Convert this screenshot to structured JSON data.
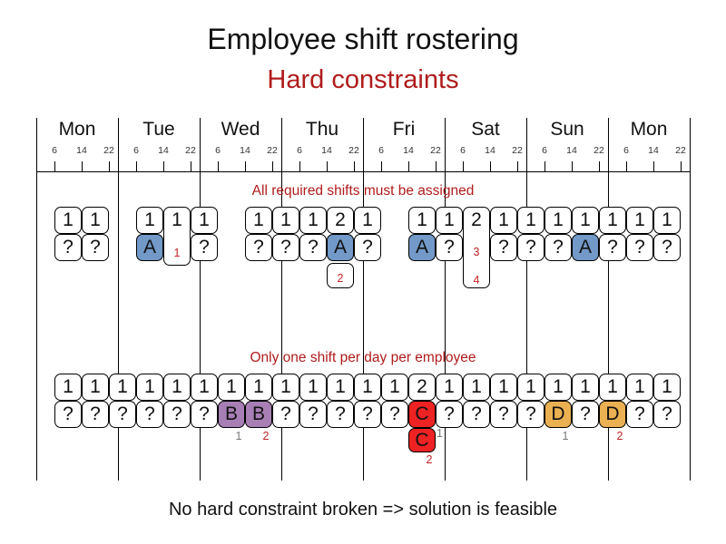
{
  "title": "Employee shift rostering",
  "subtitle": "Hard constraints",
  "footer": "No hard constraint broken => solution is feasible",
  "colors": {
    "accent_red": "#b01c1c",
    "note_red": "#c22222",
    "note_gray": "#777777",
    "line": "#000000",
    "employees": {
      "A": "#7299c8",
      "B": "#a87fb5",
      "C": "#ee2222",
      "D": "#eab052"
    }
  },
  "timeline": {
    "days": [
      "Mon",
      "Tue",
      "Wed",
      "Thu",
      "Fri",
      "Sat",
      "Sun",
      "Mon"
    ],
    "hour_ticks": [
      "6",
      "14",
      "22"
    ]
  },
  "sections": [
    {
      "label": "All required shifts must be assigned",
      "columns": [
        {
          "day": 0,
          "shift": 0,
          "required": "1",
          "assigned": "?"
        },
        {
          "day": 0,
          "shift": 1,
          "required": "1",
          "assigned": "?"
        },
        {
          "day": 1,
          "shift": 0,
          "required": "1",
          "assigned": "A"
        },
        {
          "day": 1,
          "shift": 1,
          "required": "1",
          "variant": "tall",
          "tall_notes": [
            {
              "text": "1",
              "tone": "red"
            }
          ]
        },
        {
          "day": 1,
          "shift": 2,
          "required": "1",
          "assigned": "?"
        },
        {
          "day": 2,
          "shift": 1,
          "required": "1",
          "assigned": "?"
        },
        {
          "day": 2,
          "shift": 2,
          "required": "1",
          "assigned": "?"
        },
        {
          "day": 3,
          "shift": 0,
          "required": "1",
          "assigned": "?"
        },
        {
          "day": 3,
          "shift": 1,
          "required": "2",
          "assigned": "A",
          "below_box_note": {
            "text": "2",
            "tone": "red"
          }
        },
        {
          "day": 3,
          "shift": 2,
          "required": "1",
          "assigned": "?"
        },
        {
          "day": 4,
          "shift": 1,
          "required": "1",
          "assigned": "A"
        },
        {
          "day": 4,
          "shift": 2,
          "required": "1",
          "assigned": "?"
        },
        {
          "day": 5,
          "shift": 0,
          "required": "2",
          "variant": "xtall",
          "tall_notes": [
            {
              "text": "3",
              "tone": "red"
            },
            {
              "text": "4",
              "tone": "red"
            }
          ]
        },
        {
          "day": 5,
          "shift": 1,
          "required": "1",
          "assigned": "?"
        },
        {
          "day": 5,
          "shift": 2,
          "required": "1",
          "assigned": "?"
        },
        {
          "day": 6,
          "shift": 0,
          "required": "1",
          "assigned": "?"
        },
        {
          "day": 6,
          "shift": 1,
          "required": "1",
          "assigned": "A"
        },
        {
          "day": 6,
          "shift": 2,
          "required": "1",
          "assigned": "?"
        },
        {
          "day": 7,
          "shift": 0,
          "required": "1",
          "assigned": "?"
        },
        {
          "day": 7,
          "shift": 1,
          "required": "1",
          "assigned": "?"
        }
      ]
    },
    {
      "label": "Only one shift per day per employee",
      "columns": [
        {
          "day": 0,
          "shift": 0,
          "required": "1",
          "assigned": "?"
        },
        {
          "day": 0,
          "shift": 1,
          "required": "1",
          "assigned": "?"
        },
        {
          "day": 0,
          "shift": 2,
          "required": "1",
          "assigned": "?"
        },
        {
          "day": 1,
          "shift": 0,
          "required": "1",
          "assigned": "?"
        },
        {
          "day": 1,
          "shift": 1,
          "required": "1",
          "assigned": "?"
        },
        {
          "day": 1,
          "shift": 2,
          "required": "1",
          "assigned": "?"
        },
        {
          "day": 2,
          "shift": 0,
          "required": "1",
          "assigned": "B",
          "sub_note": {
            "text": "1",
            "tone": "gray"
          }
        },
        {
          "day": 2,
          "shift": 1,
          "required": "1",
          "assigned": "B",
          "sub_note": {
            "text": "2",
            "tone": "red"
          }
        },
        {
          "day": 2,
          "shift": 2,
          "required": "1",
          "assigned": "?"
        },
        {
          "day": 3,
          "shift": 0,
          "required": "1",
          "assigned": "?"
        },
        {
          "day": 3,
          "shift": 1,
          "required": "1",
          "assigned": "?"
        },
        {
          "day": 3,
          "shift": 2,
          "required": "1",
          "assigned": "?"
        },
        {
          "day": 4,
          "shift": 0,
          "required": "1",
          "assigned": "?"
        },
        {
          "day": 4,
          "shift": 1,
          "required": "2",
          "assigned": "C",
          "stack_cell": {
            "text": "C"
          },
          "side_note": {
            "text": "1",
            "tone": "gray"
          },
          "sub_note": {
            "text": "2",
            "tone": "red"
          }
        },
        {
          "day": 4,
          "shift": 2,
          "required": "1",
          "assigned": "?"
        },
        {
          "day": 5,
          "shift": 0,
          "required": "1",
          "assigned": "?"
        },
        {
          "day": 5,
          "shift": 1,
          "required": "1",
          "assigned": "?"
        },
        {
          "day": 5,
          "shift": 2,
          "required": "1",
          "assigned": "?"
        },
        {
          "day": 6,
          "shift": 0,
          "required": "1",
          "assigned": "D",
          "sub_note": {
            "text": "1",
            "tone": "gray"
          }
        },
        {
          "day": 6,
          "shift": 1,
          "required": "1",
          "assigned": "?"
        },
        {
          "day": 6,
          "shift": 2,
          "required": "1",
          "assigned": "D",
          "sub_note": {
            "text": "2",
            "tone": "red"
          }
        },
        {
          "day": 7,
          "shift": 0,
          "required": "1",
          "assigned": "?"
        },
        {
          "day": 7,
          "shift": 1,
          "required": "1",
          "assigned": "?"
        }
      ]
    }
  ]
}
